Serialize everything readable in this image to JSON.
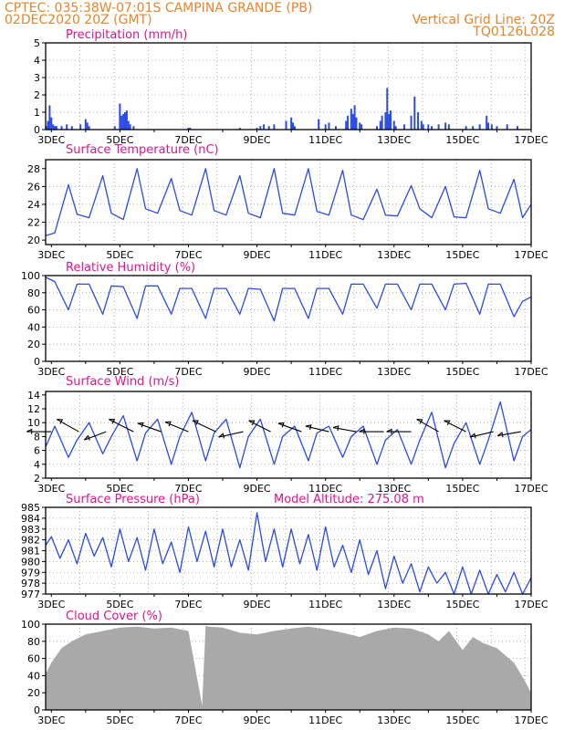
{
  "header": {
    "line1": "CPTEC:   035:38W-07:01S   CAMPINA GRANDE (PB)",
    "line2_left": "02DEC2020 20Z (GMT)",
    "line2_right": "Vertical Grid Line: 20Z",
    "line3_right": "TQ0126L028"
  },
  "colors": {
    "header": "#e8842a",
    "title": "#e0148c",
    "series": "#2a4be6",
    "cloud": "#a9a9a9",
    "wind_arrow": "#000000",
    "grid": "#9a9a9a"
  },
  "x_tick_labels": [
    "3DEC",
    "5DEC",
    "7DEC",
    "9DEC",
    "11DEC",
    "13DEC",
    "15DEC",
    "17DEC"
  ],
  "chart_data": [
    {
      "id": "precip",
      "type": "bar",
      "title": "Precipitation (mm/h)",
      "x_range_days": [
        2.833,
        17.0
      ],
      "ylim": [
        0,
        5
      ],
      "yticks": [
        0,
        1,
        2,
        3,
        4,
        5
      ],
      "x": [
        2.85,
        2.9,
        2.95,
        3.0,
        3.05,
        3.1,
        3.15,
        3.3,
        3.45,
        3.6,
        3.85,
        4.0,
        4.05,
        4.1,
        4.85,
        5.0,
        5.05,
        5.1,
        5.15,
        5.2,
        5.25,
        5.3,
        5.4,
        7.0,
        7.05,
        8.5,
        9.0,
        9.1,
        9.2,
        9.35,
        9.5,
        9.85,
        10.0,
        10.05,
        10.1,
        10.8,
        11.0,
        11.1,
        11.3,
        11.6,
        11.65,
        11.75,
        11.8,
        11.85,
        11.9,
        12.0,
        12.05,
        12.5,
        12.6,
        12.65,
        12.75,
        12.8,
        12.85,
        12.9,
        13.0,
        13.05,
        13.3,
        13.5,
        13.6,
        13.7,
        13.8,
        13.85,
        14.0,
        14.1,
        14.3,
        14.5,
        14.6,
        15.1,
        15.3,
        15.5,
        15.7,
        15.75,
        15.85,
        16.0,
        16.3,
        16.6
      ],
      "values": [
        0.2,
        0.5,
        1.4,
        0.7,
        0.3,
        0.2,
        0.2,
        0.2,
        0.3,
        0.2,
        0.3,
        0.6,
        0.4,
        0.2,
        0.2,
        1.5,
        0.8,
        0.9,
        1.0,
        1.1,
        0.5,
        0.3,
        0.2,
        0.1,
        0.1,
        0.1,
        0.1,
        0.2,
        0.3,
        0.2,
        0.3,
        0.5,
        0.7,
        0.4,
        0.2,
        0.6,
        0.3,
        0.4,
        0.2,
        0.5,
        0.8,
        1.2,
        0.9,
        1.4,
        0.7,
        0.4,
        0.3,
        0.2,
        0.5,
        0.8,
        1.0,
        2.4,
        0.9,
        1.1,
        0.5,
        0.2,
        0.3,
        0.8,
        1.9,
        1.0,
        0.5,
        0.3,
        0.3,
        0.2,
        0.3,
        0.4,
        0.3,
        0.2,
        0.2,
        0.3,
        0.8,
        0.4,
        0.3,
        0.2,
        0.3,
        0.2
      ]
    },
    {
      "id": "temperature",
      "type": "line",
      "title": "Surface Temperature (nC)",
      "x_range_days": [
        2.833,
        17.0
      ],
      "ylim": [
        19.5,
        29
      ],
      "yticks": [
        20,
        22,
        24,
        26,
        28
      ],
      "x": [
        2.833,
        3.1,
        3.5,
        3.75,
        4.1,
        4.5,
        4.75,
        5.1,
        5.5,
        5.75,
        6.1,
        6.5,
        6.75,
        7.1,
        7.5,
        7.75,
        8.1,
        8.5,
        8.75,
        9.1,
        9.5,
        9.75,
        10.1,
        10.5,
        10.75,
        11.1,
        11.5,
        11.75,
        12.1,
        12.5,
        12.75,
        13.1,
        13.5,
        13.75,
        14.1,
        14.5,
        14.75,
        15.1,
        15.5,
        15.75,
        16.1,
        16.5,
        16.75,
        17.0
      ],
      "values": [
        20.5,
        20.8,
        26.2,
        22.9,
        22.5,
        27.2,
        23.0,
        22.3,
        28.0,
        23.5,
        23.0,
        26.9,
        23.3,
        22.8,
        28.0,
        23.3,
        22.8,
        27.2,
        23.0,
        22.5,
        28.0,
        23.0,
        22.8,
        28.0,
        23.2,
        22.8,
        27.8,
        22.8,
        22.3,
        25.7,
        22.8,
        22.7,
        26.1,
        23.5,
        22.5,
        26.0,
        22.6,
        22.5,
        27.8,
        23.5,
        23.0,
        26.8,
        22.5,
        24.0
      ]
    },
    {
      "id": "humidity",
      "type": "line",
      "title": "Relative Humidity (%)",
      "x_range_days": [
        2.833,
        17.0
      ],
      "ylim": [
        0,
        100
      ],
      "yticks": [
        0,
        20,
        40,
        60,
        80,
        100
      ],
      "x": [
        2.833,
        3.1,
        3.5,
        3.75,
        4.1,
        4.5,
        4.75,
        5.1,
        5.5,
        5.75,
        6.1,
        6.5,
        6.75,
        7.1,
        7.5,
        7.75,
        8.1,
        8.5,
        8.75,
        9.1,
        9.5,
        9.75,
        10.1,
        10.5,
        10.75,
        11.1,
        11.5,
        11.75,
        12.1,
        12.5,
        12.75,
        13.1,
        13.5,
        13.75,
        14.1,
        14.5,
        14.75,
        15.1,
        15.5,
        15.75,
        16.1,
        16.5,
        16.75,
        17.0
      ],
      "values": [
        98,
        93,
        60,
        90,
        90,
        55,
        88,
        87,
        50,
        88,
        88,
        55,
        85,
        85,
        50,
        85,
        85,
        55,
        85,
        84,
        47,
        85,
        85,
        50,
        85,
        85,
        55,
        90,
        90,
        62,
        90,
        90,
        60,
        90,
        90,
        60,
        90,
        91,
        55,
        90,
        90,
        52,
        70,
        75
      ]
    },
    {
      "id": "wind",
      "type": "line",
      "title": "Surface Wind (m/s)",
      "x_range_days": [
        2.833,
        17.0
      ],
      "ylim": [
        2,
        14.5
      ],
      "yticks": [
        2,
        4,
        6,
        8,
        10,
        12,
        14
      ],
      "x": [
        2.833,
        3.1,
        3.5,
        3.75,
        4.1,
        4.5,
        4.75,
        5.1,
        5.5,
        5.75,
        6.1,
        6.5,
        6.75,
        7.1,
        7.5,
        7.75,
        8.1,
        8.5,
        8.75,
        9.1,
        9.5,
        9.75,
        10.1,
        10.5,
        10.75,
        11.1,
        11.5,
        11.75,
        12.1,
        12.5,
        12.75,
        13.1,
        13.5,
        13.75,
        14.1,
        14.5,
        14.75,
        15.1,
        15.5,
        15.75,
        16.1,
        16.5,
        16.75,
        17.0
      ],
      "values": [
        6.5,
        9.5,
        5.0,
        7.5,
        10.0,
        5.5,
        8.0,
        11.0,
        4.5,
        8.5,
        10.5,
        4.0,
        8.0,
        11.5,
        4.5,
        8.5,
        10.5,
        3.5,
        8.0,
        10.5,
        4.0,
        8.0,
        9.5,
        4.5,
        8.5,
        9.5,
        5.0,
        8.0,
        9.5,
        4.0,
        7.5,
        9.0,
        4.0,
        7.5,
        11.5,
        3.5,
        7.0,
        10.0,
        4.0,
        7.5,
        13.0,
        4.5,
        8.0,
        9.0
      ],
      "arrows": [
        {
          "x": 3.0,
          "y": 8.7,
          "u": -0.9,
          "v": 0.0
        },
        {
          "x": 3.8,
          "y": 8.7,
          "u": -0.8,
          "v": 0.45
        },
        {
          "x": 4.6,
          "y": 8.7,
          "u": -0.8,
          "v": -0.3
        },
        {
          "x": 5.4,
          "y": 8.7,
          "u": -0.9,
          "v": 0.45
        },
        {
          "x": 6.2,
          "y": 8.7,
          "u": -0.85,
          "v": 0.3
        },
        {
          "x": 7.0,
          "y": 8.7,
          "u": -0.85,
          "v": 0.35
        },
        {
          "x": 7.8,
          "y": 8.7,
          "u": -0.85,
          "v": 0.4
        },
        {
          "x": 8.6,
          "y": 8.7,
          "u": -0.9,
          "v": -0.2
        },
        {
          "x": 9.4,
          "y": 8.7,
          "u": -0.8,
          "v": 0.4
        },
        {
          "x": 10.3,
          "y": 8.7,
          "u": -0.85,
          "v": 0.3
        },
        {
          "x": 11.1,
          "y": 8.7,
          "u": -0.85,
          "v": 0.2
        },
        {
          "x": 11.9,
          "y": 8.7,
          "u": -0.85,
          "v": 0.15
        },
        {
          "x": 12.7,
          "y": 8.7,
          "u": -0.9,
          "v": 0.0
        },
        {
          "x": 13.5,
          "y": 8.7,
          "u": -0.9,
          "v": 0.0
        },
        {
          "x": 14.3,
          "y": 8.7,
          "u": -0.8,
          "v": 0.45
        },
        {
          "x": 15.1,
          "y": 8.7,
          "u": -0.8,
          "v": 0.4
        },
        {
          "x": 15.9,
          "y": 8.7,
          "u": -0.85,
          "v": -0.2
        },
        {
          "x": 16.7,
          "y": 8.7,
          "u": -0.85,
          "v": -0.15
        }
      ]
    },
    {
      "id": "pressure",
      "type": "line",
      "title": "Surface Pressure (hPa)",
      "annotation": "Model Altitude: 275.08 m",
      "x_range_days": [
        2.833,
        17.0
      ],
      "ylim": [
        977,
        985
      ],
      "yticks": [
        977,
        978,
        979,
        980,
        981,
        982,
        983,
        984,
        985
      ],
      "x": [
        2.833,
        3.0,
        3.25,
        3.5,
        3.75,
        4.0,
        4.25,
        4.5,
        4.75,
        5.0,
        5.25,
        5.5,
        5.75,
        6.0,
        6.25,
        6.5,
        6.75,
        7.0,
        7.25,
        7.5,
        7.75,
        8.0,
        8.25,
        8.5,
        8.75,
        9.0,
        9.25,
        9.5,
        9.75,
        10.0,
        10.25,
        10.5,
        10.75,
        11.0,
        11.25,
        11.5,
        11.75,
        12.0,
        12.25,
        12.5,
        12.75,
        13.0,
        13.25,
        13.5,
        13.75,
        14.0,
        14.25,
        14.5,
        14.75,
        15.0,
        15.25,
        15.5,
        15.75,
        16.0,
        16.25,
        16.5,
        16.75,
        17.0
      ],
      "values": [
        981.5,
        982.3,
        980.3,
        982.0,
        979.8,
        982.6,
        980.5,
        982.2,
        979.5,
        983.0,
        980.0,
        982.2,
        979.2,
        983.0,
        979.8,
        981.8,
        979.0,
        983.2,
        980.0,
        982.8,
        979.5,
        983.0,
        979.5,
        982.0,
        979.2,
        984.5,
        980.0,
        983.0,
        979.5,
        983.0,
        979.8,
        982.5,
        979.2,
        983.2,
        979.5,
        981.5,
        979.0,
        982.0,
        978.8,
        981.0,
        977.5,
        980.5,
        978.0,
        979.8,
        977.2,
        979.5,
        978.0,
        979.0,
        977.0,
        979.5,
        977.0,
        979.2,
        977.0,
        978.8,
        977.2,
        979.0,
        977.0,
        978.5
      ]
    },
    {
      "id": "cloud",
      "type": "area",
      "title": "Cloud Cover (%)",
      "x_range_days": [
        2.833,
        17.0
      ],
      "ylim": [
        0,
        100
      ],
      "yticks": [
        0,
        20,
        40,
        60,
        80,
        100
      ],
      "x": [
        2.833,
        3.0,
        3.3,
        3.6,
        4.0,
        4.5,
        5.0,
        5.5,
        6.0,
        6.5,
        7.0,
        7.4,
        7.5,
        7.6,
        8.0,
        8.5,
        9.0,
        9.5,
        10.0,
        10.5,
        11.0,
        11.5,
        12.0,
        12.5,
        13.0,
        13.5,
        14.0,
        14.3,
        14.6,
        15.0,
        15.3,
        15.6,
        16.0,
        16.5,
        16.8,
        17.0
      ],
      "values": [
        42,
        55,
        72,
        80,
        88,
        92,
        96,
        97,
        95,
        96,
        92,
        5,
        98,
        97,
        96,
        90,
        88,
        92,
        95,
        97,
        94,
        90,
        85,
        92,
        96,
        95,
        88,
        80,
        92,
        70,
        85,
        78,
        72,
        55,
        35,
        20
      ]
    }
  ]
}
